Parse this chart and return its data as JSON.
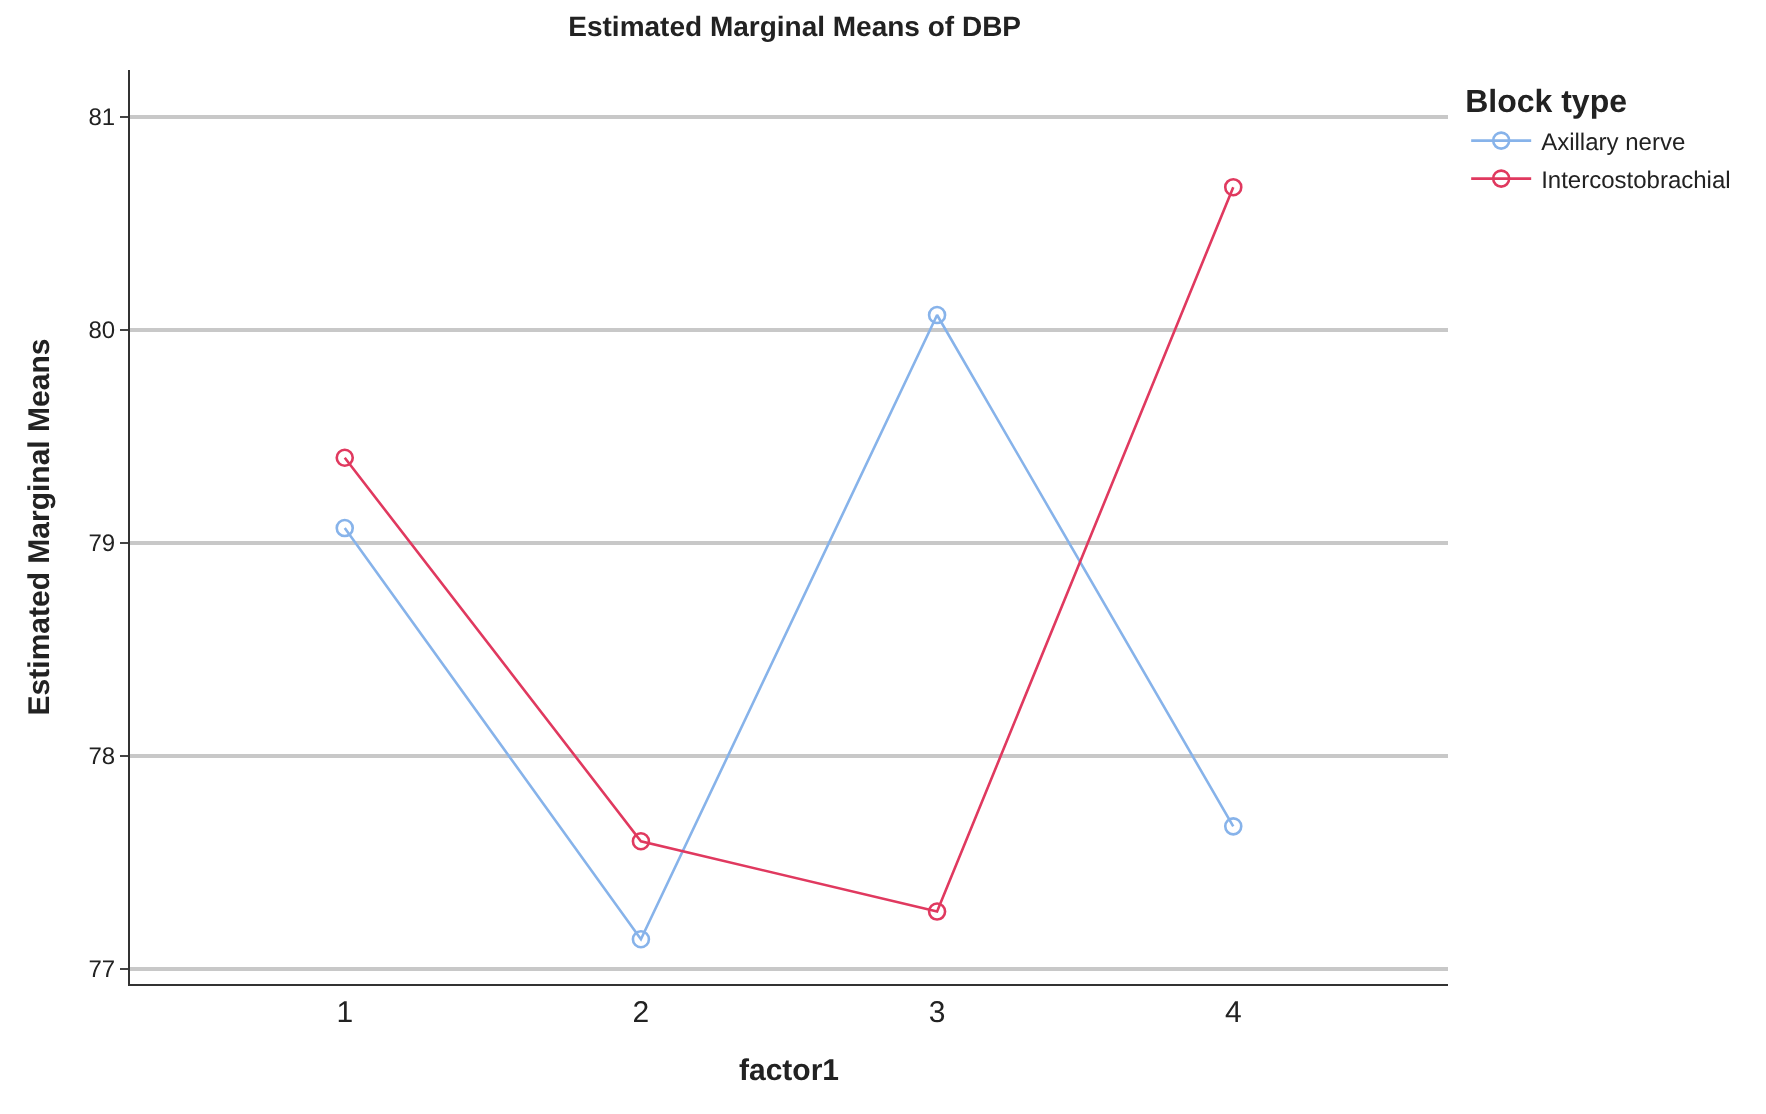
{
  "chart_data": {
    "type": "line",
    "title": "Estimated Marginal Means of DBP",
    "xlabel": "factor1",
    "ylabel": "Estimated Marginal Means",
    "legend_title": "Block type",
    "categories": [
      "1",
      "2",
      "3",
      "4"
    ],
    "series": [
      {
        "name": "Axillary nerve",
        "color": "#87b3ea",
        "values": [
          79.07,
          77.14,
          80.07,
          77.67
        ]
      },
      {
        "name": "Intercostobrachial",
        "color": "#e0395f",
        "values": [
          79.4,
          77.6,
          77.27,
          80.67
        ]
      }
    ],
    "ylim": [
      76.93,
      81.22
    ],
    "yticks": [
      77,
      78,
      79,
      80,
      81
    ],
    "grid": "y",
    "legend": "top right",
    "marker": "circle",
    "line_style": "solid"
  }
}
